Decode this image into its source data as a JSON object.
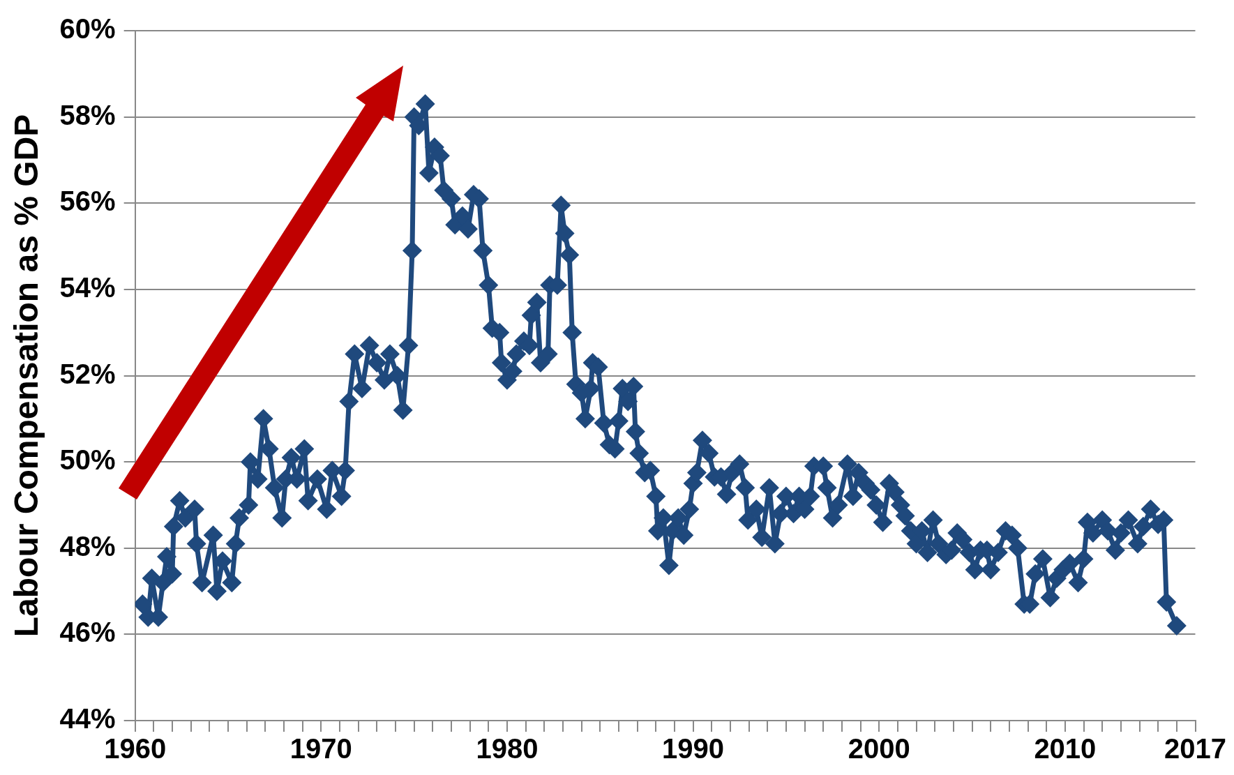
{
  "chart_data": {
    "type": "line",
    "ylabel": "Labour Compensation as % GDP",
    "marker": "diamond",
    "line_style": "solid",
    "grid": "y",
    "legend": false,
    "xlim": [
      1960,
      2017
    ],
    "xticks": [
      1960,
      {
        "value": 1961,
        "label": null
      },
      {
        "value": 1962,
        "label": null
      },
      {
        "value": 1963,
        "label": null
      },
      {
        "value": 1964,
        "label": null
      },
      {
        "value": 1965,
        "label": null
      },
      {
        "value": 1966,
        "label": null
      },
      {
        "value": 1967,
        "label": null
      },
      {
        "value": 1968,
        "label": null
      },
      {
        "value": 1969,
        "label": null
      },
      1970,
      {
        "value": 1971,
        "label": null
      },
      {
        "value": 1972,
        "label": null
      },
      {
        "value": 1973,
        "label": null
      },
      {
        "value": 1974,
        "label": null
      },
      {
        "value": 1975,
        "label": null
      },
      {
        "value": 1976,
        "label": null
      },
      {
        "value": 1977,
        "label": null
      },
      {
        "value": 1978,
        "label": null
      },
      {
        "value": 1979,
        "label": null
      },
      1980,
      {
        "value": 1981,
        "label": null
      },
      {
        "value": 1982,
        "label": null
      },
      {
        "value": 1983,
        "label": null
      },
      {
        "value": 1984,
        "label": null
      },
      {
        "value": 1985,
        "label": null
      },
      {
        "value": 1986,
        "label": null
      },
      {
        "value": 1987,
        "label": null
      },
      {
        "value": 1988,
        "label": null
      },
      {
        "value": 1989,
        "label": null
      },
      1990,
      {
        "value": 1991,
        "label": null
      },
      {
        "value": 1992,
        "label": null
      },
      {
        "value": 1993,
        "label": null
      },
      {
        "value": 1994,
        "label": null
      },
      {
        "value": 1995,
        "label": null
      },
      {
        "value": 1996,
        "label": null
      },
      {
        "value": 1997,
        "label": null
      },
      {
        "value": 1998,
        "label": null
      },
      {
        "value": 1999,
        "label": null
      },
      2000,
      {
        "value": 2001,
        "label": null
      },
      {
        "value": 2002,
        "label": null
      },
      {
        "value": 2003,
        "label": null
      },
      {
        "value": 2004,
        "label": null
      },
      {
        "value": 2005,
        "label": null
      },
      {
        "value": 2006,
        "label": null
      },
      {
        "value": 2007,
        "label": null
      },
      {
        "value": 2008,
        "label": null
      },
      {
        "value": 2009,
        "label": null
      },
      2010,
      {
        "value": 2011,
        "label": null
      },
      {
        "value": 2012,
        "label": null
      },
      {
        "value": 2013,
        "label": null
      },
      {
        "value": 2014,
        "label": null
      },
      {
        "value": 2015,
        "label": null
      },
      {
        "value": 2016,
        "label": null
      },
      2017
    ],
    "ylim": [
      44,
      60
    ],
    "yticks": [
      {
        "value": 44,
        "label": "44%"
      },
      {
        "value": 46,
        "label": "46%"
      },
      {
        "value": 48,
        "label": "48%"
      },
      {
        "value": 50,
        "label": "50%"
      },
      {
        "value": 52,
        "label": "52%"
      },
      {
        "value": 54,
        "label": "54%"
      },
      {
        "value": 56,
        "label": "56%"
      },
      {
        "value": 58,
        "label": "58%"
      },
      {
        "value": 60,
        "label": "60%"
      }
    ],
    "series": [
      {
        "color": "#1f497d",
        "x": [
          1960.4,
          1960.7,
          1960.9,
          1961.25,
          1961.5,
          1961.7,
          1962.0,
          1962.07,
          1962.4,
          1962.7,
          1963.2,
          1963.3,
          1963.6,
          1964.2,
          1964.4,
          1964.7,
          1965.2,
          1965.4,
          1965.6,
          1966.1,
          1966.2,
          1966.6,
          1966.9,
          1967.2,
          1967.5,
          1967.9,
          1968.1,
          1968.4,
          1968.7,
          1969.1,
          1969.3,
          1969.8,
          1970.3,
          1970.6,
          1971.1,
          1971.3,
          1971.5,
          1971.8,
          1972.2,
          1972.6,
          1973.0,
          1973.4,
          1973.7,
          1974.1,
          1974.4,
          1974.7,
          1974.9,
          1975.0,
          1975.25,
          1975.6,
          1975.8,
          1976.1,
          1976.4,
          1976.6,
          1977.0,
          1977.2,
          1977.6,
          1977.9,
          1978.2,
          1978.5,
          1978.7,
          1979.0,
          1979.2,
          1979.6,
          1979.7,
          1980.0,
          1980.3,
          1980.5,
          1980.9,
          1981.2,
          1981.3,
          1981.6,
          1981.8,
          1982.2,
          1982.3,
          1982.7,
          1982.9,
          1983.1,
          1983.35,
          1983.5,
          1983.7,
          1984.0,
          1984.2,
          1984.5,
          1984.6,
          1984.9,
          1985.2,
          1985.5,
          1985.8,
          1986.0,
          1986.2,
          1986.5,
          1986.8,
          1986.9,
          1987.1,
          1987.4,
          1987.7,
          1988.0,
          1988.1,
          1988.4,
          1988.7,
          1988.9,
          1989.2,
          1989.5,
          1989.8,
          1990.0,
          1990.2,
          1990.5,
          1990.85,
          1991.15,
          1991.5,
          1991.8,
          1992.1,
          1992.5,
          1992.8,
          1992.95,
          1993.4,
          1993.7,
          1994.1,
          1994.4,
          1994.7,
          1995.0,
          1995.4,
          1995.7,
          1996.0,
          1996.3,
          1996.5,
          1997.0,
          1997.2,
          1997.5,
          1997.8,
          1998.3,
          1998.6,
          1998.9,
          1999.25,
          1999.55,
          1999.85,
          2000.2,
          2000.55,
          2000.85,
          2001.15,
          2001.4,
          2001.7,
          2002.0,
          2002.3,
          2002.6,
          2002.9,
          2003.2,
          2003.6,
          2003.9,
          2004.2,
          2004.5,
          2004.85,
          2005.15,
          2005.45,
          2005.8,
          2006.0,
          2006.4,
          2006.8,
          2007.15,
          2007.45,
          2007.8,
          2008.1,
          2008.4,
          2008.8,
          2009.2,
          2009.55,
          2009.9,
          2010.25,
          2010.7,
          2011.0,
          2011.2,
          2011.5,
          2012.0,
          2012.3,
          2012.7,
          2013.0,
          2013.4,
          2013.9,
          2014.2,
          2014.6,
          2015.0,
          2015.3,
          2015.45,
          2016.0
        ],
        "values": [
          46.7,
          46.4,
          47.3,
          46.4,
          47.2,
          47.8,
          47.4,
          48.5,
          49.1,
          48.7,
          48.9,
          48.1,
          47.2,
          48.3,
          47.0,
          47.7,
          47.2,
          48.1,
          48.7,
          49.0,
          50.0,
          49.6,
          51.0,
          50.3,
          49.4,
          48.7,
          49.6,
          50.1,
          49.6,
          50.3,
          49.1,
          49.6,
          48.9,
          49.8,
          49.2,
          49.8,
          51.4,
          52.5,
          51.7,
          52.7,
          52.3,
          51.9,
          52.5,
          52.0,
          51.2,
          52.7,
          54.9,
          58.0,
          57.8,
          58.3,
          56.7,
          57.3,
          57.1,
          56.3,
          56.1,
          55.5,
          55.7,
          55.4,
          56.2,
          56.1,
          54.9,
          54.1,
          53.1,
          53.0,
          52.3,
          51.9,
          52.1,
          52.5,
          52.8,
          52.7,
          53.4,
          53.7,
          52.3,
          52.5,
          54.1,
          54.1,
          55.95,
          55.3,
          54.8,
          53.0,
          51.8,
          51.6,
          51.0,
          51.7,
          52.3,
          52.2,
          50.9,
          50.4,
          50.3,
          50.95,
          51.7,
          51.4,
          51.75,
          50.7,
          50.2,
          49.75,
          49.8,
          49.2,
          48.4,
          48.7,
          47.6,
          48.4,
          48.7,
          48.3,
          48.9,
          49.5,
          49.75,
          50.5,
          50.2,
          49.65,
          49.65,
          49.25,
          49.75,
          49.95,
          49.4,
          48.65,
          48.9,
          48.25,
          49.4,
          48.1,
          48.8,
          49.2,
          48.8,
          49.2,
          48.9,
          49.2,
          49.9,
          49.9,
          49.4,
          48.7,
          49.0,
          49.95,
          49.2,
          49.75,
          49.5,
          49.35,
          49.0,
          48.6,
          49.5,
          49.3,
          49.0,
          48.75,
          48.4,
          48.1,
          48.4,
          47.9,
          48.65,
          48.1,
          47.85,
          47.95,
          48.35,
          48.2,
          47.9,
          47.5,
          47.95,
          47.95,
          47.5,
          47.9,
          48.4,
          48.3,
          48.0,
          46.7,
          46.7,
          47.4,
          47.75,
          46.85,
          47.3,
          47.5,
          47.65,
          47.2,
          47.75,
          48.6,
          48.35,
          48.65,
          48.4,
          47.95,
          48.35,
          48.65,
          48.1,
          48.5,
          48.9,
          48.55,
          48.65,
          46.75,
          46.2
        ]
      }
    ]
  }
}
